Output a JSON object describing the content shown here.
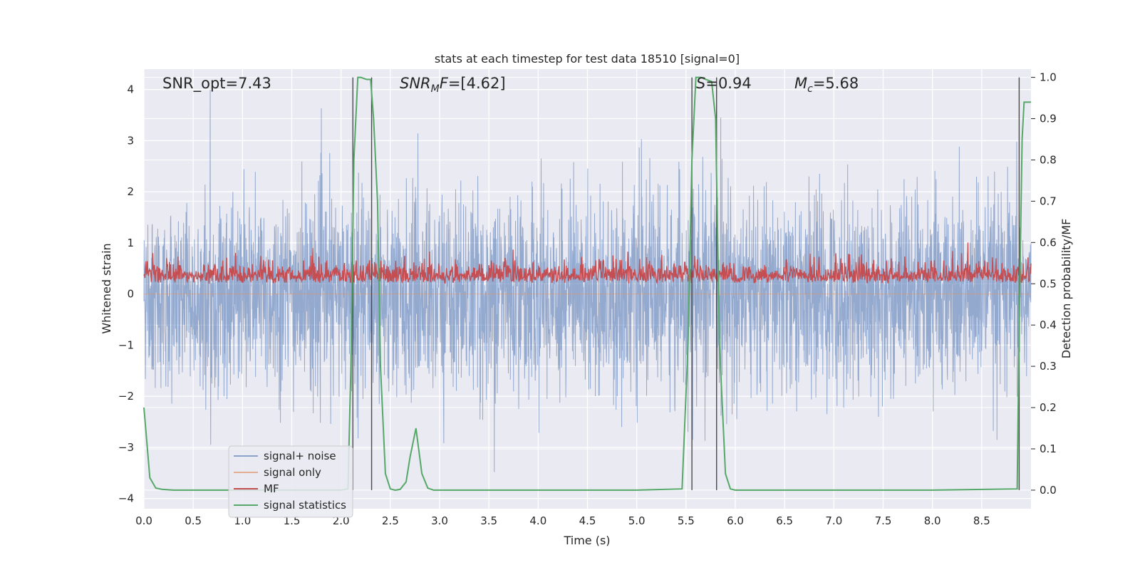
{
  "chart_data": {
    "type": "line",
    "title": "stats at each timestep for test data 18510 [signal=0]",
    "xlabel": "Time (s)",
    "ylabel_left": "Whitened strain",
    "ylabel_right": "Detection probability/MF",
    "xlim": [
      0.0,
      9.0
    ],
    "ylim_left": [
      -4.2,
      4.4
    ],
    "ylim_right": [
      -0.045,
      1.02
    ],
    "x_ticks": [
      "0.0",
      "0.5",
      "1.0",
      "1.5",
      "2.0",
      "2.5",
      "3.0",
      "3.5",
      "4.0",
      "4.5",
      "5.0",
      "5.5",
      "6.0",
      "6.5",
      "7.0",
      "7.5",
      "8.0",
      "8.5"
    ],
    "y_ticks_left": [
      "4",
      "3",
      "2",
      "1",
      "0",
      "−1",
      "−2",
      "−3",
      "−4"
    ],
    "y_ticks_right": [
      "1.0",
      "0.9",
      "0.8",
      "0.7",
      "0.6",
      "0.5",
      "0.4",
      "0.3",
      "0.2",
      "0.1",
      "0.0"
    ],
    "grid": true,
    "annotations": {
      "snr_opt": "SNR_opt=7.43",
      "snr_mf": "=[4.62]",
      "s_value": "=0.94",
      "mc_value": "=5.68"
    },
    "legend": {
      "placement": "lower-left",
      "entries": [
        "signal+ noise",
        "signal only",
        "MF",
        "signal statistics"
      ]
    },
    "series": [
      {
        "name": "signal+ noise",
        "color": "#4c72b0",
        "description_range": [
          -3.75,
          4.0
        ],
        "approx_envelope": {
          "typical_min": -2.0,
          "typical_max": 2.0,
          "peak_max": 4.0,
          "peak_min": -3.75
        }
      },
      {
        "name": "signal only",
        "color": "#dd8452",
        "values_constant": 0.0
      },
      {
        "name": "MF",
        "color": "#c44e52",
        "axis": "right",
        "approx_range": [
          0.49,
          0.6
        ]
      },
      {
        "name": "signal statistics",
        "color": "#55a868",
        "axis": "right",
        "x": [
          0.0,
          0.06,
          0.12,
          0.18,
          0.3,
          1.0,
          2.0,
          2.07,
          2.1,
          2.13,
          2.17,
          2.2,
          2.26,
          2.3,
          2.33,
          2.37,
          2.4,
          2.45,
          2.5,
          2.55,
          2.6,
          2.66,
          2.7,
          2.76,
          2.82,
          2.88,
          2.94,
          3.0,
          3.5,
          4.0,
          5.0,
          5.46,
          5.52,
          5.56,
          5.6,
          5.65,
          5.7,
          5.76,
          5.8,
          5.84,
          5.9,
          5.95,
          6.0,
          7.0,
          8.0,
          8.86,
          8.88,
          8.91,
          8.93,
          8.96,
          9.0
        ],
        "y": [
          0.2,
          0.03,
          0.005,
          0.002,
          0.0,
          0.0,
          0.0,
          0.003,
          0.3,
          0.8,
          1.0,
          1.0,
          0.995,
          0.995,
          0.9,
          0.7,
          0.3,
          0.04,
          0.003,
          0.0,
          0.002,
          0.02,
          0.08,
          0.15,
          0.04,
          0.005,
          0.0,
          0.0,
          0.0,
          0.0,
          0.0,
          0.003,
          0.35,
          0.8,
          1.0,
          1.0,
          0.995,
          0.99,
          0.9,
          0.35,
          0.04,
          0.003,
          0.0,
          0.0,
          0.0,
          0.003,
          0.4,
          0.85,
          0.94,
          0.94,
          0.94
        ]
      }
    ],
    "vertical_lines_x": [
      2.12,
      2.31,
      5.56,
      5.81,
      8.88
    ]
  }
}
